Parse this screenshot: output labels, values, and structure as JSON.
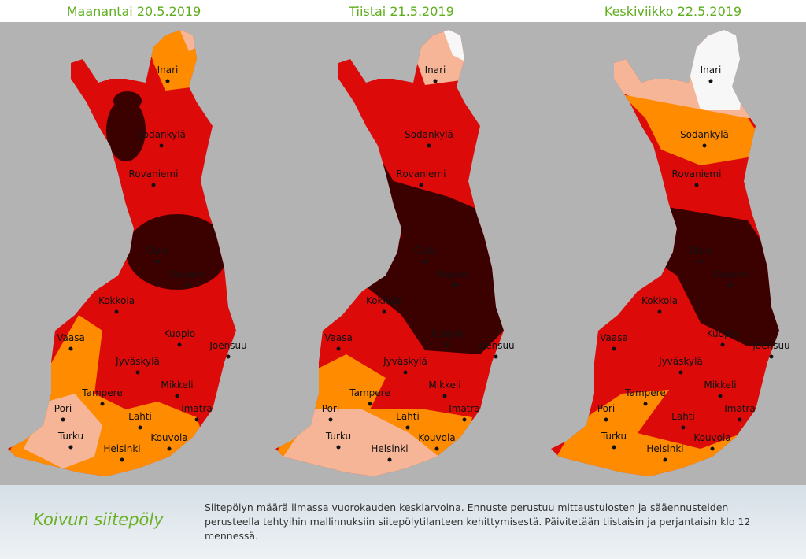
{
  "maps": [
    {
      "title": "Maanantai 20.5.2019",
      "cities": [
        "Inari",
        "Sodankylä",
        "Rovaniemi",
        "Oulu",
        "Kajaani",
        "Kokkola",
        "Vaasa",
        "Kuopio",
        "Joensuu",
        "Jyväskylä",
        "Mikkeli",
        "Tampere",
        "Imatra",
        "Pori",
        "Lahti",
        "Turku",
        "Kouvola",
        "Helsinki"
      ]
    },
    {
      "title": "Tiistai 21.5.2019",
      "cities": [
        "Inari",
        "Sodankylä",
        "Rovaniemi",
        "Oulu",
        "Kajaani",
        "Kokkola",
        "Vaasa",
        "Kuopio",
        "Joensuu",
        "Jyväskylä",
        "Mikkeli",
        "Tampere",
        "Imatra",
        "Pori",
        "Lahti",
        "Turku",
        "Kouvola",
        "Helsinki"
      ]
    },
    {
      "title": "Keskiviikko 22.5.2019",
      "cities": [
        "Inari",
        "Sodankylä",
        "Rovaniemi",
        "Oulu",
        "Kajaani",
        "Kokkola",
        "Vaasa",
        "Kuopio",
        "Joensuu",
        "Jyväskylä",
        "Mikkeli",
        "Tampere",
        "Imatra",
        "Pori",
        "Lahti",
        "Turku",
        "Kouvola",
        "Helsinki"
      ]
    }
  ],
  "footer": {
    "title": "Koivun siitepöly",
    "text": "Siitepölyn määrä ilmassa vuorokauden keskiarvoina. Ennuste perustuu mittaustulosten ja sääennusteiden perusteella tehtyihin mallinnuksiin siitepölytilanteen kehittymisestä. Päivitetään tiistaisin ja perjantaisin klo 12 mennessä."
  }
}
